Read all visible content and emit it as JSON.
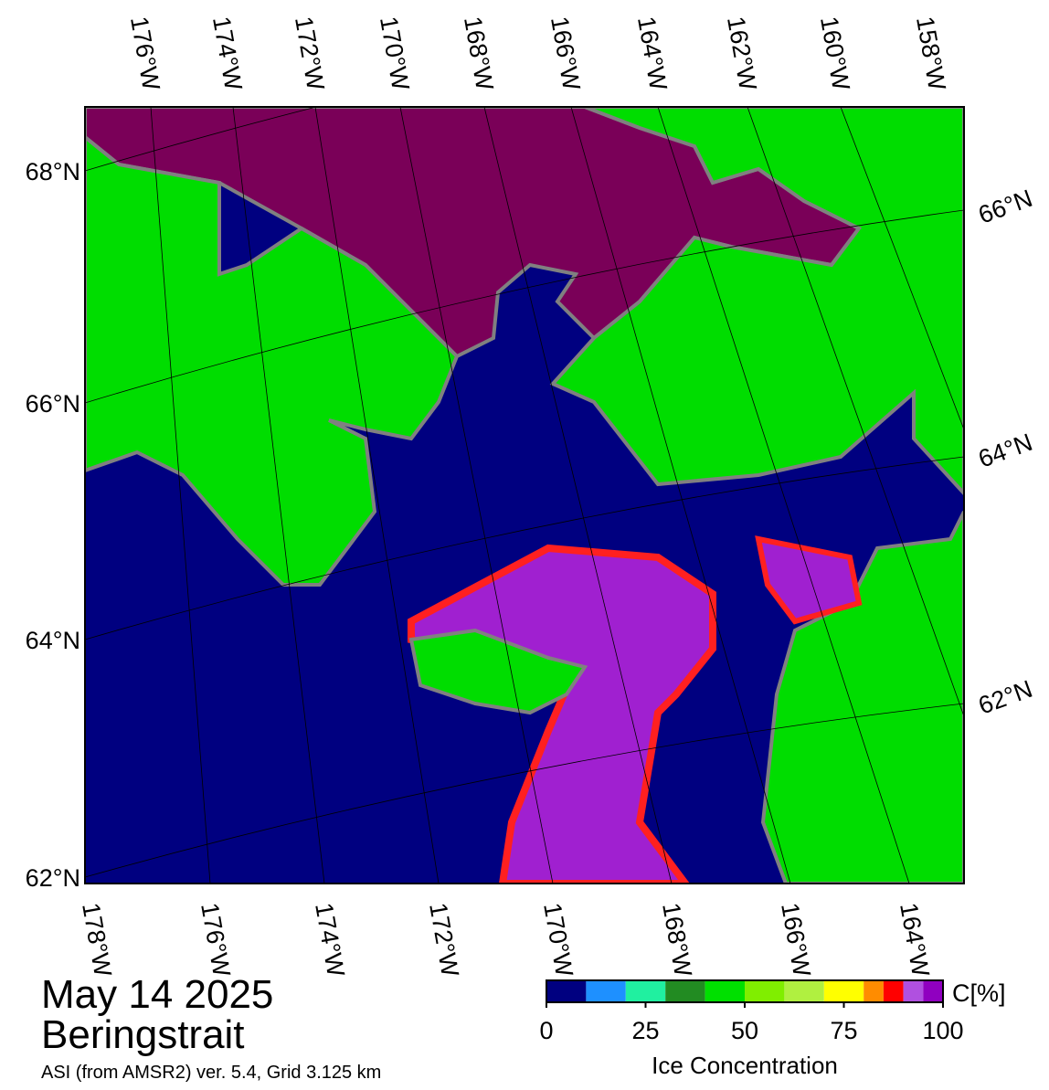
{
  "title": "May 14 2025",
  "region": "Beringstrait",
  "source": "ASI (from AMSR2) ver. 5.4,  Grid 3.125 km",
  "map": {
    "top_lon_labels": [
      "176°W",
      "174°W",
      "172°W",
      "170°W",
      "168°W",
      "166°W",
      "164°W",
      "162°W",
      "160°W",
      "158°W"
    ],
    "bottom_lon_labels": [
      "178°W",
      "176°W",
      "174°W",
      "172°W",
      "170°W",
      "168°W",
      "166°W",
      "164°W"
    ],
    "left_lat_labels": [
      "68°N",
      "66°N",
      "64°N",
      "62°N"
    ],
    "right_lat_labels": [
      "66°N",
      "64°N",
      "62°N"
    ]
  },
  "colorbar": {
    "label": "Ice Concentration",
    "unit": "C[%]",
    "range": [
      0,
      100
    ],
    "ticks": [
      0,
      25,
      50,
      75,
      100
    ],
    "bounds": [
      0,
      10,
      20,
      30,
      40,
      50,
      60,
      70,
      80,
      85,
      90,
      95,
      100
    ],
    "colors": [
      "#000080",
      "#1e90ff",
      "#20f0a0",
      "#228b22",
      "#00e000",
      "#80ee00",
      "#b0f040",
      "#ffff00",
      "#ff8c00",
      "#ff0000",
      "#b050e0",
      "#9000c0"
    ]
  }
}
